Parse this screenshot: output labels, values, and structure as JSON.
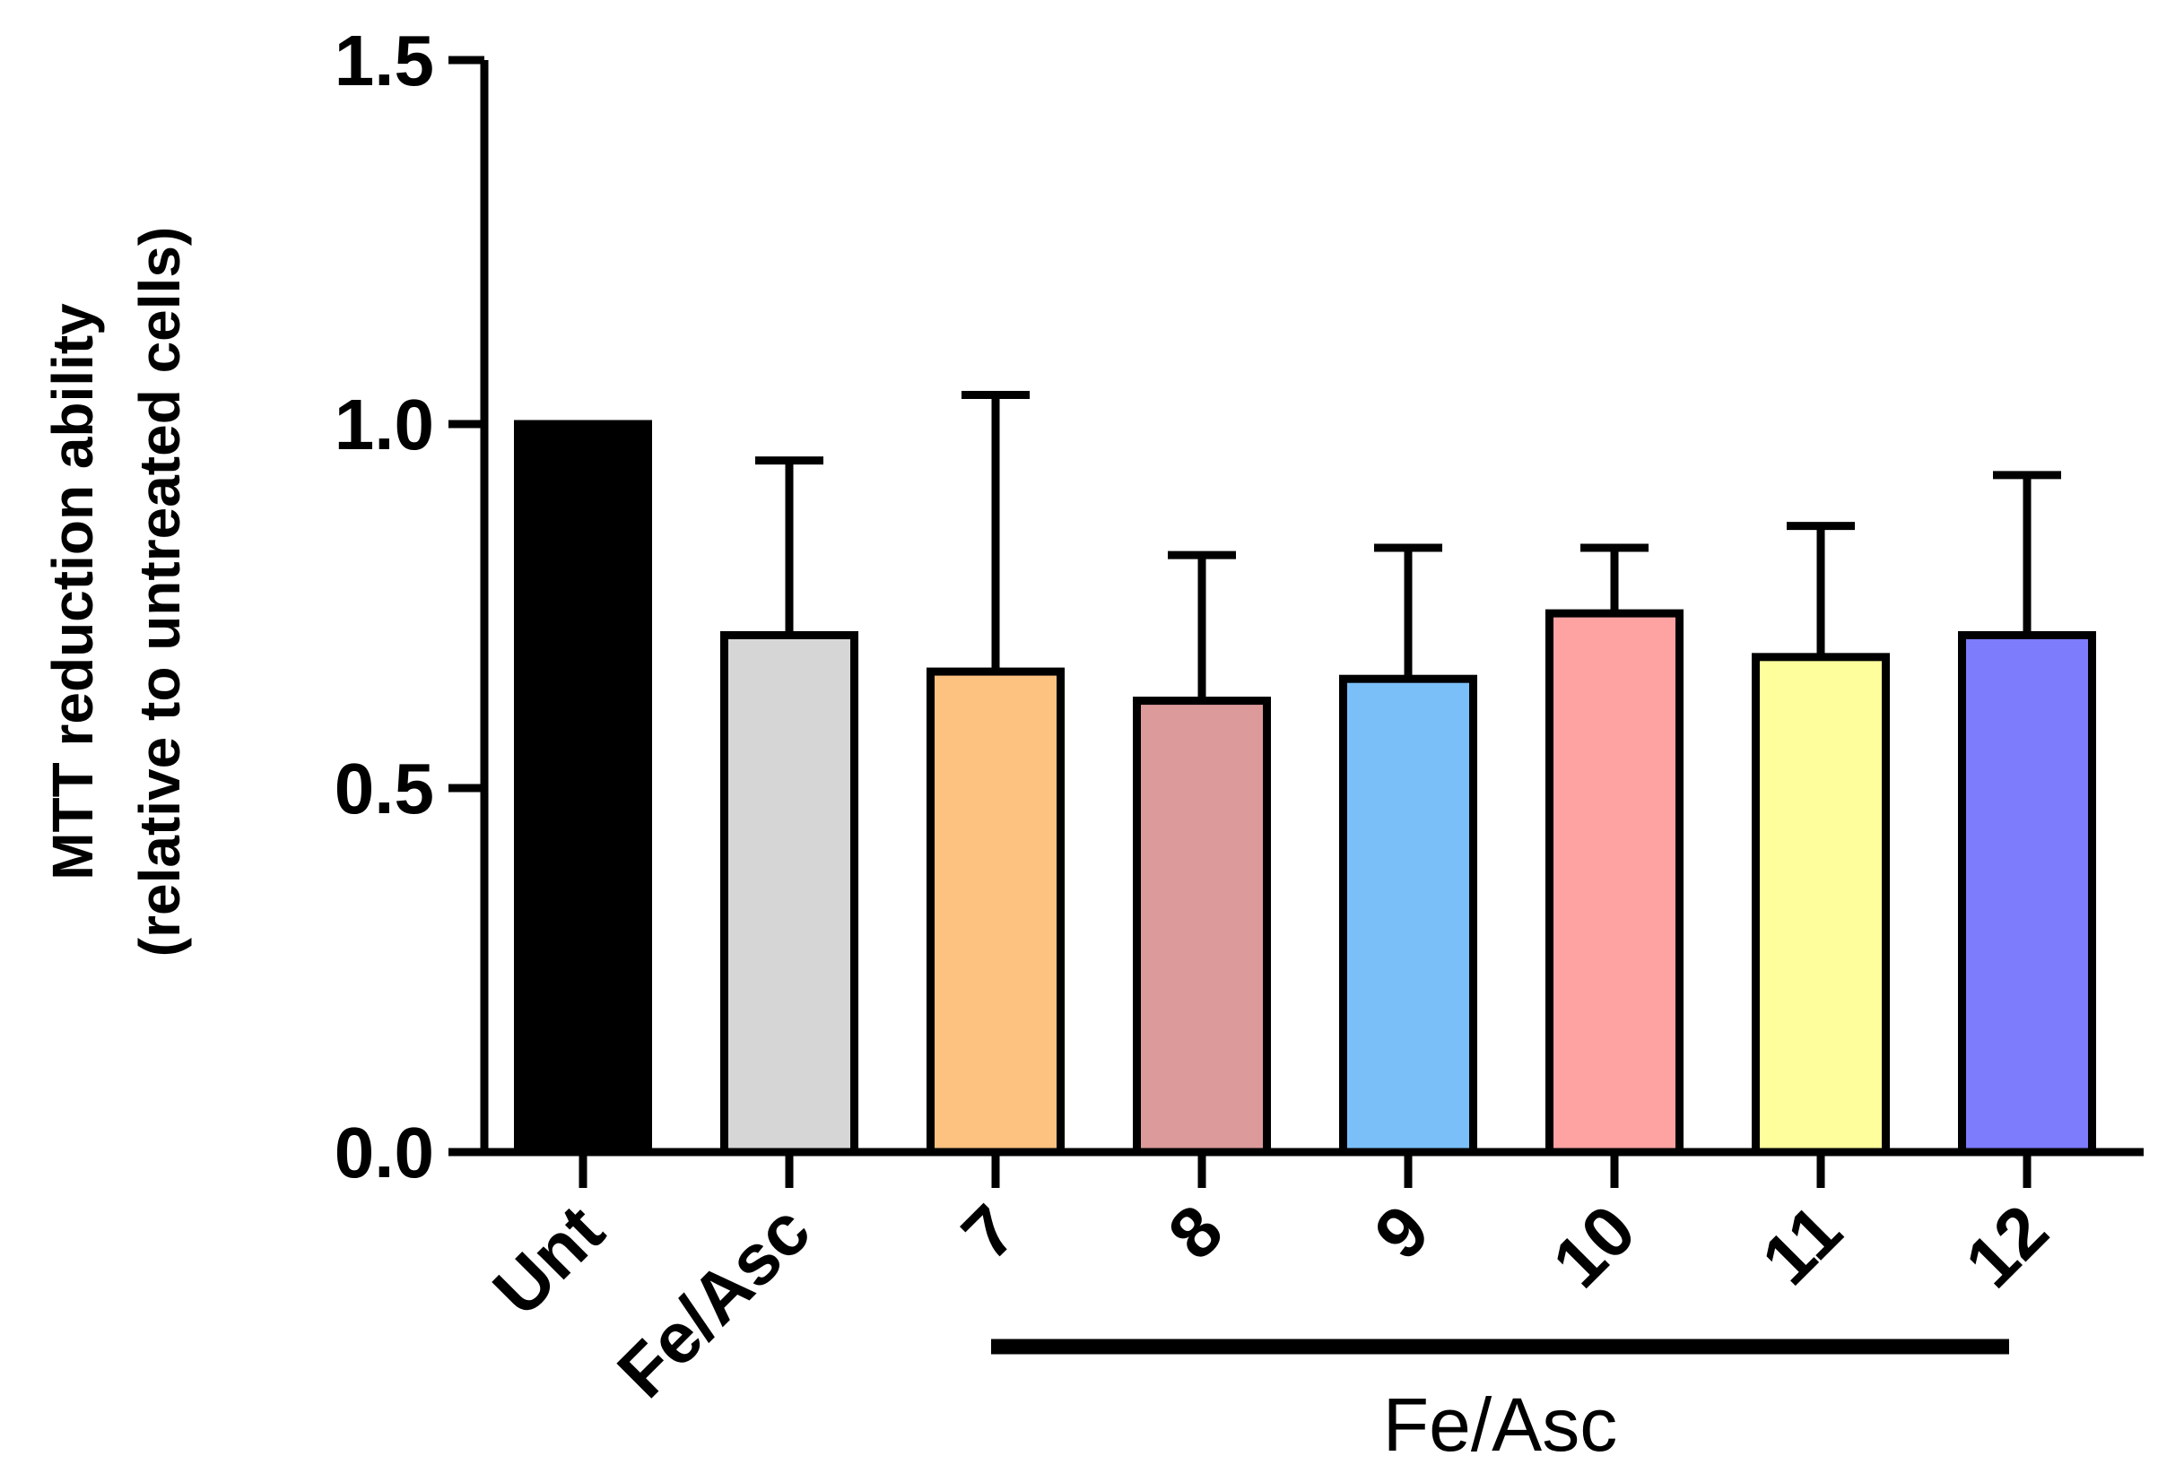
{
  "chart_data": {
    "type": "bar",
    "title": "",
    "xlabel": "",
    "ylabel_lines": [
      "MTT reduction ability",
      "(relative to untreated cells)"
    ],
    "ylim": [
      0,
      1.5
    ],
    "yticks": [
      0.0,
      0.5,
      1.0,
      1.5
    ],
    "ytick_labels": [
      "0.0",
      "0.5",
      "1.0",
      "1.5"
    ],
    "categories": [
      "Unt",
      "Fe/Asc",
      "7",
      "8",
      "9",
      "10",
      "11",
      "12"
    ],
    "values": [
      1.0,
      0.71,
      0.66,
      0.62,
      0.65,
      0.74,
      0.68,
      0.71
    ],
    "error_upper": [
      1.0,
      0.95,
      1.04,
      0.82,
      0.83,
      0.83,
      0.86,
      0.93
    ],
    "colors": [
      "#000000",
      "#d6d6d6",
      "#fdc180",
      "#dc9a9a",
      "#7bbff9",
      "#fea2a2",
      "#fefe9c",
      "#7c7cfc"
    ],
    "group_bracket": {
      "label": "Fe/Asc",
      "from_category": "7",
      "to_category": "12"
    }
  }
}
